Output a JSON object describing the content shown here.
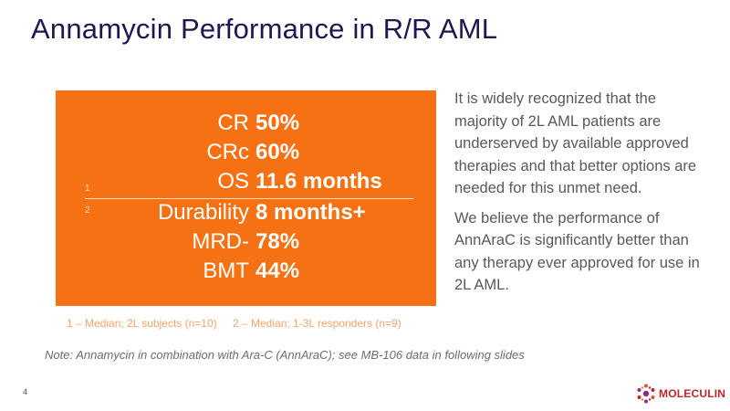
{
  "slide": {
    "title": "Annamycin Performance in R/R AML",
    "page_number": "4"
  },
  "metrics_panel": {
    "rows": [
      {
        "label": "CR",
        "value": "50%",
        "marker": ""
      },
      {
        "label": "CRc",
        "value": "60%",
        "marker": ""
      },
      {
        "label": "OS",
        "value": "11.6 months",
        "marker": "1"
      },
      {
        "label": "Durability",
        "value": "8 months+",
        "marker": "2"
      },
      {
        "label": "MRD-",
        "value": "78%",
        "marker": ""
      },
      {
        "label": "BMT",
        "value": "44%",
        "marker": ""
      }
    ],
    "accent_color": "#f57114"
  },
  "footnotes": [
    "1 – Median; 2L subjects (n=10)",
    "2 – Median; 1-3L responders (n=9)"
  ],
  "side_text": {
    "paragraph_1": "It is widely recognized that the majority of 2L AML patients are underserved by available approved therapies and that better options are needed for this unmet need.",
    "paragraph_2": "We believe the performance of AnnAraC is significantly better than any therapy ever approved for use in 2L AML."
  },
  "note": "Note: Annamycin in combination with Ara-C (AnnAraC); see MB-106 data in following slides",
  "logo": {
    "text": "MOLECULIN",
    "icon": "molecule-icon"
  }
}
